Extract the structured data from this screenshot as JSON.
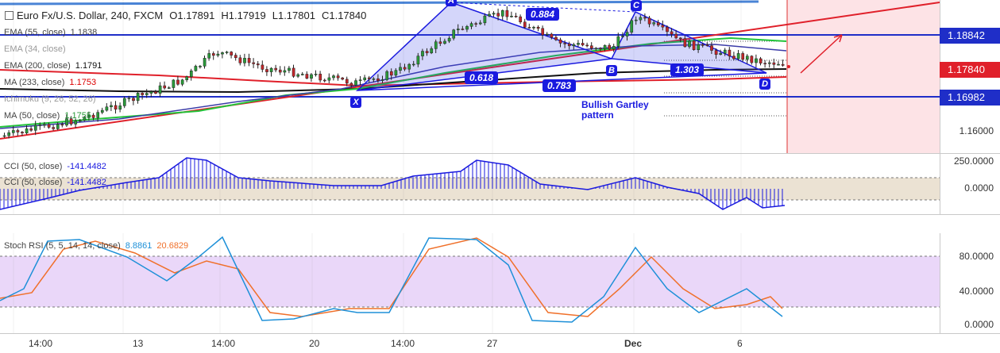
{
  "header": {
    "symbol": "Euro Fx/U.S. Dollar, 240, FXCM",
    "open": "O1.17891",
    "high": "H1.17919",
    "low": "L1.17801",
    "close": "C1.17840"
  },
  "legends": {
    "ema55": {
      "label": "EMA (55, close)",
      "value": "1.1838"
    },
    "ema34": {
      "label": "EMA (34, close)",
      "value": ""
    },
    "ema200": {
      "label": "EMA (200, close)",
      "value": "1.1791"
    },
    "ma233": {
      "label": "MA (233, close)",
      "value": "1.1753"
    },
    "ichimoku": {
      "label": "Ichimoku (9, 26, 52, 26)",
      "value": ""
    },
    "ma50": {
      "label": "MA (50, close)",
      "value": "1.1755"
    }
  },
  "price_scale": {
    "ticks": [
      "1.18842",
      "1.17840",
      "1.16982",
      "1.16000"
    ],
    "tags": [
      {
        "value": "1.18842",
        "color": "#1f2ec8"
      },
      {
        "value": "1.17840",
        "color": "#e0202a"
      },
      {
        "value": "1.16982",
        "color": "#1f2ec8"
      }
    ]
  },
  "harmonic": {
    "points": [
      "X",
      "A",
      "B",
      "C",
      "D"
    ],
    "ratios": [
      "0.884",
      "0.618",
      "0.783",
      "1.303"
    ],
    "note": [
      "Bullish Gartley",
      "pattern"
    ]
  },
  "cci1": {
    "label": "CCI (50, close)",
    "value": "-141.4482"
  },
  "cci2": {
    "label": "CCI (50, close)",
    "value": "-141.4482"
  },
  "cci_scale": {
    "ticks": [
      "250.0000",
      "0.0000"
    ]
  },
  "stoch": {
    "label": "Stoch RSI (5, 5, 14, 14, close)",
    "k": "8.8861",
    "d": "20.6829",
    "k_color": "#1e90d8",
    "d_color": "#f0702a"
  },
  "stoch_scale": {
    "ticks": [
      "80.0000",
      "40.0000",
      "0.0000"
    ]
  },
  "time_axis": [
    "14:00",
    "13",
    "14:00",
    "20",
    "14:00",
    "27",
    "Dec",
    "6"
  ],
  "colors": {
    "accent_blue": "#1a1adf",
    "red": "#e0202a",
    "bull": "#2a9a3a",
    "bear": "#c2262b"
  }
}
